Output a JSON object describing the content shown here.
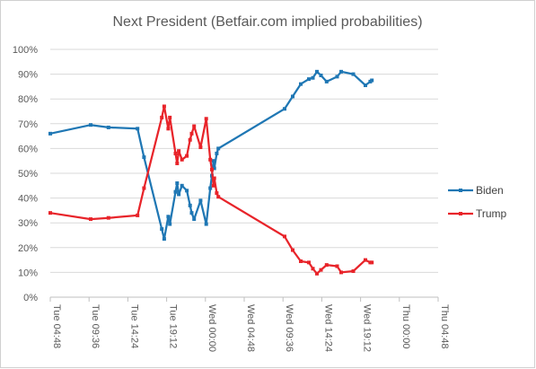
{
  "chart_data": {
    "type": "line",
    "title": "Next President (Betfair.com implied probabilities)",
    "xlabel": "",
    "ylabel": "",
    "x_tick_labels": [
      "Tue 04:48",
      "Tue 09:36",
      "Tue 14:24",
      "Tue 19:12",
      "Wed 00:00",
      "Wed 04:48",
      "Wed 09:36",
      "Wed 14:24",
      "Wed 19:12",
      "Thu 00:00",
      "Thu 04:48"
    ],
    "y_tick_labels": [
      "0%",
      "10%",
      "20%",
      "30%",
      "40%",
      "50%",
      "60%",
      "70%",
      "80%",
      "90%",
      "100%"
    ],
    "ylim": [
      0,
      100
    ],
    "xlim_hours": [
      0,
      48
    ],
    "grid": "horizontal",
    "legend_position": "right",
    "series": [
      {
        "name": "Biden",
        "color": "#1f77b4",
        "points": [
          [
            0.0,
            66
          ],
          [
            5.0,
            69.5
          ],
          [
            7.2,
            68.5
          ],
          [
            10.8,
            68
          ],
          [
            11.6,
            56.5
          ],
          [
            13.8,
            27.5
          ],
          [
            14.1,
            23.5
          ],
          [
            14.6,
            32.5
          ],
          [
            14.8,
            29.5
          ],
          [
            15.5,
            42.5
          ],
          [
            15.7,
            46
          ],
          [
            15.9,
            41.5
          ],
          [
            16.3,
            45
          ],
          [
            16.9,
            43
          ],
          [
            17.3,
            37
          ],
          [
            17.5,
            34
          ],
          [
            17.8,
            31.5
          ],
          [
            18.6,
            39
          ],
          [
            19.3,
            29.5
          ],
          [
            19.8,
            44
          ],
          [
            20.0,
            49
          ],
          [
            20.2,
            55
          ],
          [
            20.3,
            52
          ],
          [
            20.6,
            58
          ],
          [
            20.8,
            60
          ],
          [
            29.0,
            76
          ],
          [
            30.0,
            81
          ],
          [
            31.0,
            86
          ],
          [
            32.0,
            88
          ],
          [
            32.5,
            88.5
          ],
          [
            33.0,
            91
          ],
          [
            33.5,
            89.5
          ],
          [
            34.2,
            87
          ],
          [
            35.5,
            89
          ],
          [
            36.0,
            91
          ],
          [
            37.5,
            90
          ],
          [
            39.0,
            85.5
          ],
          [
            39.6,
            87
          ],
          [
            39.8,
            87.5
          ]
        ]
      },
      {
        "name": "Trump",
        "color": "#e8242a",
        "points": [
          [
            0.0,
            34
          ],
          [
            5.0,
            31.5
          ],
          [
            7.2,
            32
          ],
          [
            10.8,
            33
          ],
          [
            11.6,
            44
          ],
          [
            13.8,
            72.5
          ],
          [
            14.1,
            77
          ],
          [
            14.6,
            68
          ],
          [
            14.8,
            72.5
          ],
          [
            15.5,
            58
          ],
          [
            15.7,
            54
          ],
          [
            15.9,
            59
          ],
          [
            16.3,
            55.5
          ],
          [
            16.9,
            57
          ],
          [
            17.3,
            63.5
          ],
          [
            17.5,
            66
          ],
          [
            17.8,
            69
          ],
          [
            18.6,
            60.5
          ],
          [
            19.3,
            72
          ],
          [
            19.8,
            55.5
          ],
          [
            20.0,
            51.5
          ],
          [
            20.2,
            45
          ],
          [
            20.3,
            48
          ],
          [
            20.6,
            42
          ],
          [
            20.8,
            40.5
          ],
          [
            29.0,
            24.5
          ],
          [
            30.0,
            19
          ],
          [
            31.0,
            14.5
          ],
          [
            32.0,
            14
          ],
          [
            32.5,
            11.5
          ],
          [
            33.0,
            9.5
          ],
          [
            33.5,
            11
          ],
          [
            34.2,
            13
          ],
          [
            35.5,
            12.5
          ],
          [
            36.0,
            10
          ],
          [
            37.5,
            10.5
          ],
          [
            39.0,
            15
          ],
          [
            39.6,
            14
          ],
          [
            39.8,
            14
          ]
        ]
      }
    ]
  }
}
